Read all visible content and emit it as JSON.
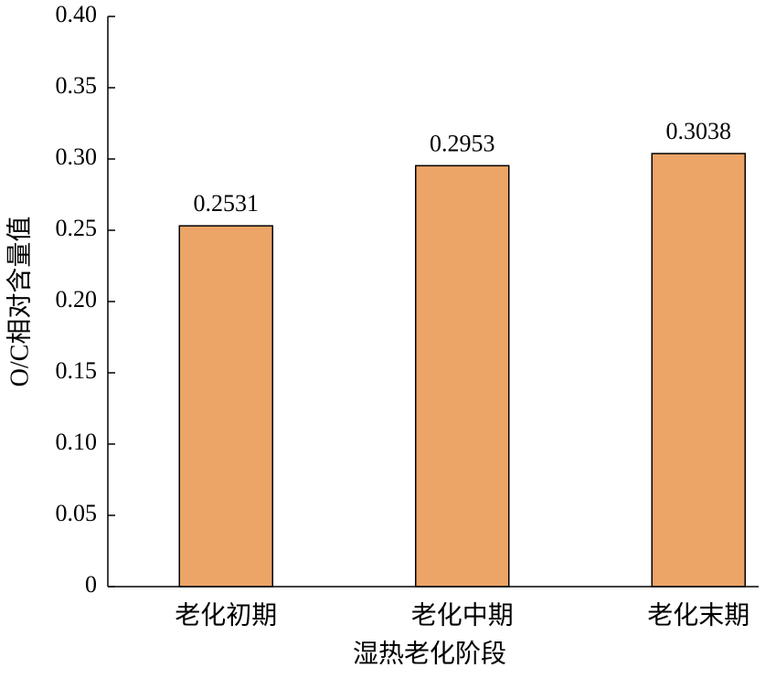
{
  "chart_data": {
    "type": "bar",
    "x_label": "湿热老化阶段",
    "y_label": "O/C相对含量值",
    "categories": [
      "老化初期",
      "老化中期",
      "老化末期"
    ],
    "values": [
      0.2531,
      0.2953,
      0.3038
    ],
    "color": "#eca467",
    "ylim": [
      0,
      0.4
    ],
    "yticks": [
      0,
      0.05,
      {
        "value": 0.1,
        "label": "0.10"
      },
      0.15,
      {
        "value": 0.2,
        "label": "0.20"
      },
      0.25,
      {
        "value": 0.3,
        "label": "0.30"
      },
      0.35,
      {
        "value": 0.4,
        "label": "0.40"
      }
    ],
    "grid": false
  }
}
